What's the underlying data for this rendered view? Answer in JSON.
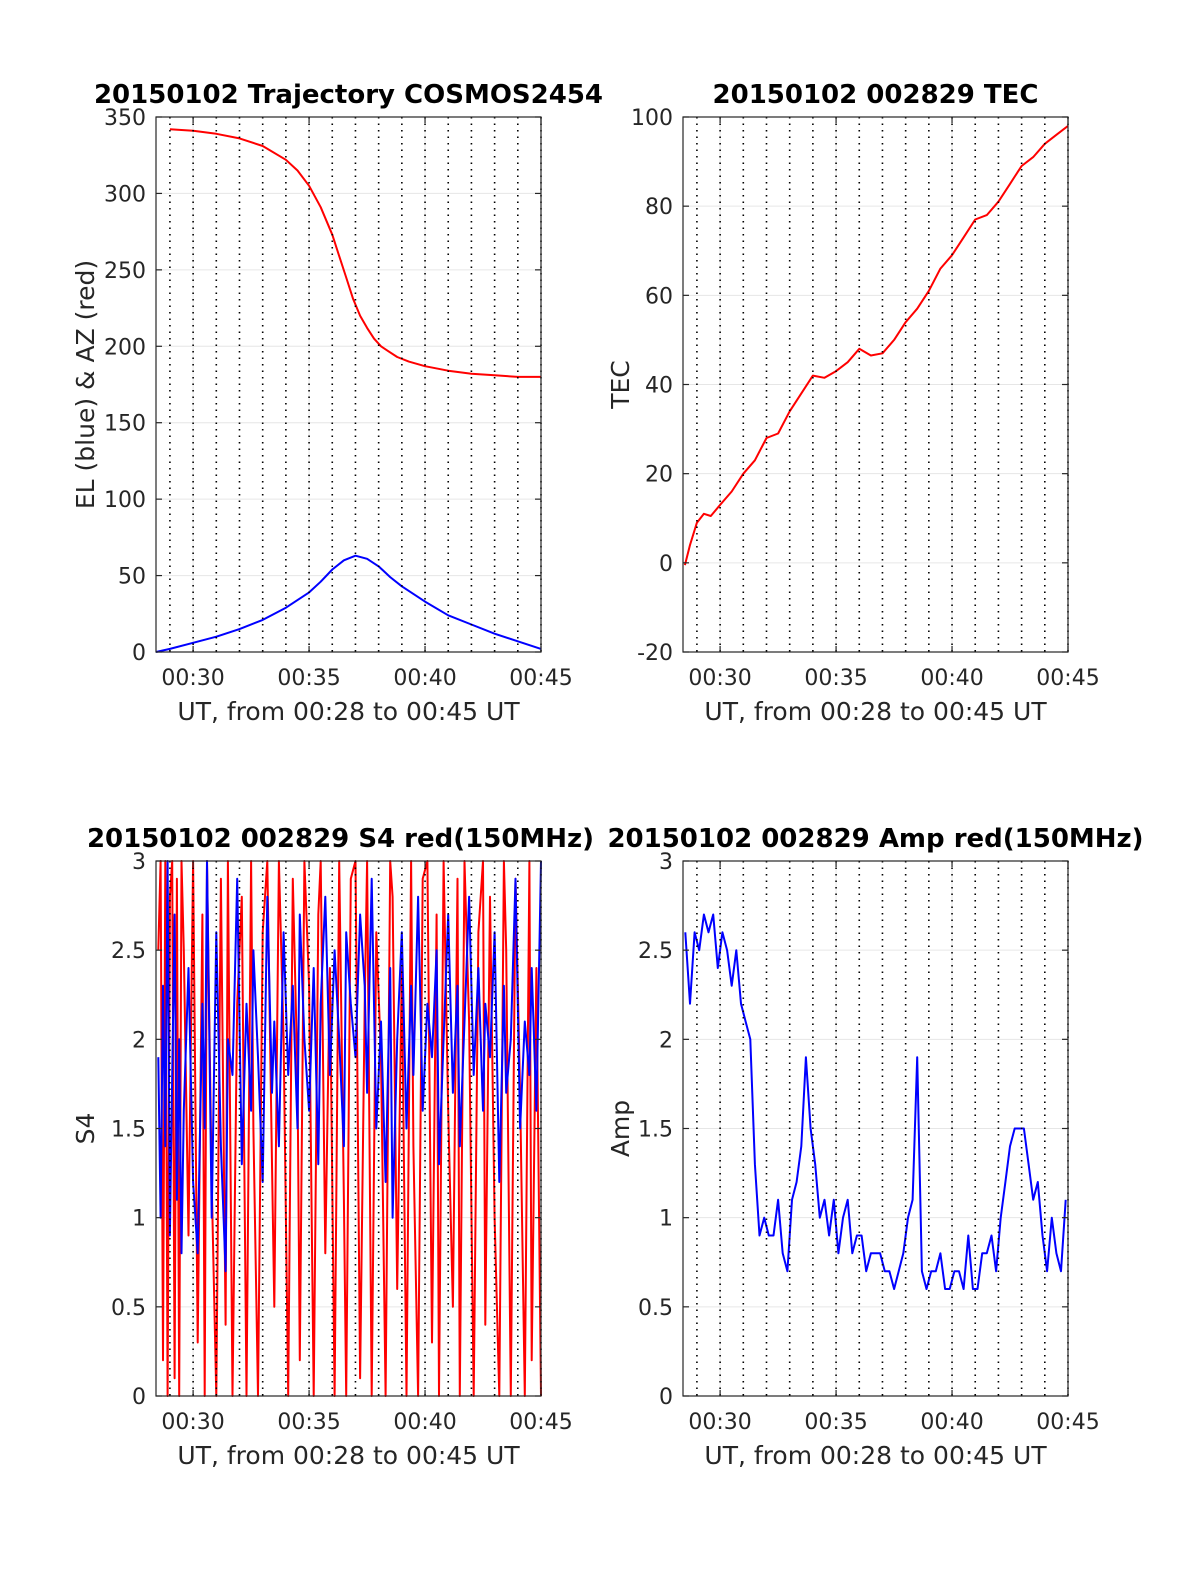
{
  "figure": {
    "background": "#ffffff",
    "grid_color": "#e6e6e6",
    "axis_color": "#262626"
  },
  "chart_data": [
    {
      "id": "trajectory",
      "type": "line",
      "title": "20150102 Trajectory COSMOS2454",
      "xlabel": "UT, from 00:28 to 00:45 UT",
      "ylabel": "EL (blue) & AZ (red)",
      "xlim": [
        28.4,
        45
      ],
      "ylim": [
        0,
        350
      ],
      "xticks": [
        30,
        35,
        40,
        45
      ],
      "xtick_labels": [
        "00:30",
        "00:35",
        "00:40",
        "00:45"
      ],
      "yticks": [
        0,
        50,
        100,
        150,
        200,
        250,
        300,
        350
      ],
      "ytick_labels": [
        "0",
        "50",
        "100",
        "150",
        "200",
        "250",
        "300",
        "350"
      ],
      "minute_lines": [
        29,
        30,
        31,
        32,
        33,
        34,
        35,
        36,
        37,
        38,
        39,
        40,
        41,
        42,
        43,
        44,
        45
      ],
      "grid": true,
      "series": [
        {
          "color": "#ff0000",
          "x": [
            29,
            30,
            31,
            32,
            33,
            34,
            34.5,
            35,
            35.5,
            36,
            36.3,
            36.6,
            36.9,
            37.2,
            37.5,
            37.8,
            38.1,
            38.4,
            38.8,
            39.3,
            40,
            41,
            42,
            43,
            44,
            45
          ],
          "y": [
            342,
            341,
            339,
            336,
            331,
            322,
            315,
            305,
            291,
            273,
            259,
            245,
            231,
            220,
            212,
            205,
            200,
            197,
            193,
            190,
            187,
            184,
            182,
            181,
            180,
            180
          ]
        },
        {
          "color": "#0000ff",
          "x": [
            28.4,
            29,
            30,
            31,
            32,
            33,
            34,
            35,
            35.5,
            36,
            36.5,
            37,
            37.5,
            38,
            38.5,
            39,
            40,
            41,
            42,
            43,
            44,
            45
          ],
          "y": [
            0,
            2,
            6,
            10,
            15,
            21,
            29,
            39,
            46,
            54,
            60,
            63,
            61,
            56,
            49,
            43,
            33,
            24,
            18,
            12,
            7,
            2
          ]
        }
      ]
    },
    {
      "id": "tec",
      "type": "line",
      "title": "20150102 002829 TEC",
      "xlabel": "UT, from 00:28 to 00:45 UT",
      "ylabel": "TEC",
      "xlim": [
        28.4,
        45
      ],
      "ylim": [
        -20,
        100
      ],
      "xticks": [
        30,
        35,
        40,
        45
      ],
      "xtick_labels": [
        "00:30",
        "00:35",
        "00:40",
        "00:45"
      ],
      "yticks": [
        -20,
        0,
        20,
        40,
        60,
        80,
        100
      ],
      "ytick_labels": [
        "-20",
        "0",
        "20",
        "40",
        "60",
        "80",
        "100"
      ],
      "minute_lines": [
        29,
        30,
        31,
        32,
        33,
        34,
        35,
        36,
        37,
        38,
        39,
        40,
        41,
        42,
        43,
        44,
        45
      ],
      "grid": true,
      "series": [
        {
          "color": "#ff0000",
          "x": [
            28.48,
            28.7,
            29.0,
            29.3,
            29.6,
            30.0,
            30.5,
            31.0,
            31.5,
            32.0,
            32.5,
            33.0,
            33.5,
            34.0,
            34.5,
            35.0,
            35.5,
            36.0,
            36.5,
            37.0,
            37.5,
            38.0,
            38.5,
            39.0,
            39.5,
            40.0,
            40.5,
            41.0,
            41.5,
            42.0,
            42.5,
            43.0,
            43.5,
            44.0,
            44.5,
            45.0
          ],
          "y": [
            -0.5,
            4,
            9,
            11,
            10.5,
            13,
            16,
            20,
            23,
            28,
            29,
            34,
            38,
            42,
            41.5,
            43,
            45,
            48,
            46.5,
            47,
            50,
            54,
            57,
            61,
            66,
            69,
            73,
            77,
            78,
            81,
            85,
            89,
            91,
            94,
            96,
            98
          ]
        }
      ]
    },
    {
      "id": "s4",
      "type": "line",
      "title": "20150102 002829 S4 red(150MHz)",
      "xlabel": "UT, from 00:28 to 00:45 UT",
      "ylabel": "S4",
      "xlim": [
        28.4,
        45
      ],
      "ylim": [
        0,
        3
      ],
      "xticks": [
        30,
        35,
        40,
        45
      ],
      "xtick_labels": [
        "00:30",
        "00:35",
        "00:40",
        "00:45"
      ],
      "yticks": [
        0,
        0.5,
        1,
        1.5,
        2,
        2.5,
        3
      ],
      "ytick_labels": [
        "0",
        "0.5",
        "1",
        "1.5",
        "2",
        "2.5",
        "3"
      ],
      "minute_lines": [
        29,
        30,
        31,
        32,
        33,
        34,
        35,
        36,
        37,
        38,
        39,
        40,
        41,
        42,
        43,
        44,
        45
      ],
      "grid": true,
      "series": [
        {
          "color": "#ff0000",
          "x": [
            28.5,
            28.6,
            28.7,
            28.8,
            28.9,
            29.0,
            29.1,
            29.2,
            29.3,
            29.4,
            29.5,
            29.6,
            29.8,
            30.0,
            30.2,
            30.4,
            30.5,
            30.6,
            30.8,
            31.0,
            31.2,
            31.4,
            31.5,
            31.7,
            31.9,
            32.1,
            32.3,
            32.5,
            32.6,
            32.8,
            33.0,
            33.2,
            33.4,
            33.5,
            33.7,
            33.9,
            34.1,
            34.3,
            34.5,
            34.6,
            34.8,
            35.0,
            35.2,
            35.4,
            35.5,
            35.7,
            35.9,
            36.1,
            36.3,
            36.5,
            36.6,
            36.8,
            37.0,
            37.2,
            37.4,
            37.5,
            37.7,
            37.9,
            38.1,
            38.3,
            38.5,
            38.6,
            38.8,
            39.0,
            39.2,
            39.4,
            39.5,
            39.7,
            39.9,
            40.1,
            40.3,
            40.5,
            40.6,
            40.8,
            41.0,
            41.2,
            41.4,
            41.5,
            41.7,
            41.9,
            42.1,
            42.3,
            42.5,
            42.6,
            42.8,
            43.0,
            43.2,
            43.4,
            43.5,
            43.7,
            43.9,
            44.1,
            44.3,
            44.5,
            44.6,
            44.8,
            45.0
          ],
          "y": [
            2.5,
            3,
            0.2,
            3,
            0,
            2.8,
            3,
            0.1,
            2.9,
            0,
            3,
            2.5,
            0.9,
            3,
            0.3,
            2.7,
            0,
            3,
            1.2,
            0,
            2.9,
            0.4,
            3,
            0,
            2.2,
            2.8,
            0,
            3,
            1.5,
            0,
            2.6,
            3,
            1.3,
            0.5,
            3,
            2.0,
            0,
            2.9,
            1.8,
            0.2,
            3,
            2.3,
            0,
            2.7,
            3,
            0.8,
            2.4,
            0,
            3,
            1.1,
            0,
            2.9,
            3,
            0.1,
            2.2,
            3,
            0,
            2.6,
            1.9,
            0,
            3,
            2.8,
            0.6,
            2.4,
            0,
            3,
            1.4,
            0,
            2.9,
            3,
            0.3,
            2.7,
            0,
            3,
            1.6,
            0.5,
            2.9,
            0,
            3,
            2.1,
            0,
            2.6,
            3,
            0.4,
            2.8,
            1.0,
            0,
            3,
            2.5,
            0,
            2.9,
            1.7,
            0,
            3,
            0.2,
            2.4,
            0
          ]
        },
        {
          "color": "#0000ff",
          "x": [
            28.5,
            28.6,
            28.7,
            28.8,
            28.9,
            29.0,
            29.1,
            29.2,
            29.3,
            29.4,
            29.5,
            29.6,
            29.8,
            30.0,
            30.2,
            30.4,
            30.5,
            30.6,
            30.8,
            31.0,
            31.2,
            31.4,
            31.5,
            31.7,
            31.9,
            32.1,
            32.3,
            32.5,
            32.6,
            32.8,
            33.0,
            33.2,
            33.4,
            33.5,
            33.7,
            33.9,
            34.1,
            34.3,
            34.5,
            34.6,
            34.8,
            35.0,
            35.2,
            35.4,
            35.5,
            35.7,
            35.9,
            36.1,
            36.3,
            36.5,
            36.6,
            36.8,
            37.0,
            37.2,
            37.4,
            37.5,
            37.7,
            37.9,
            38.1,
            38.3,
            38.5,
            38.6,
            38.8,
            39.0,
            39.2,
            39.4,
            39.5,
            39.7,
            39.9,
            40.1,
            40.3,
            40.5,
            40.6,
            40.8,
            41.0,
            41.2,
            41.4,
            41.5,
            41.7,
            41.9,
            42.1,
            42.3,
            42.5,
            42.6,
            42.8,
            43.0,
            43.2,
            43.4,
            43.5,
            43.7,
            43.9,
            44.1,
            44.3,
            44.5,
            44.6,
            44.8,
            45.0
          ],
          "y": [
            1.9,
            1.0,
            2.3,
            1.4,
            3.0,
            0.9,
            1.8,
            2.7,
            1.1,
            2.0,
            0.8,
            1.6,
            2.4,
            1.2,
            0.8,
            2.2,
            1.5,
            3.0,
            1.0,
            2.6,
            1.4,
            0.7,
            2.0,
            1.8,
            2.9,
            1.3,
            2.2,
            1.6,
            2.5,
            1.9,
            1.2,
            2.8,
            1.7,
            2.1,
            1.4,
            2.6,
            1.8,
            2.3,
            1.5,
            2.7,
            2.0,
            1.6,
            2.4,
            1.3,
            2.2,
            2.8,
            1.8,
            2.5,
            2.0,
            1.4,
            2.6,
            2.2,
            1.9,
            2.7,
            2.3,
            1.7,
            2.9,
            1.5,
            2.1,
            1.2,
            2.4,
            1.0,
            2.0,
            2.6,
            1.5,
            2.3,
            1.8,
            2.8,
            1.6,
            2.2,
            1.9,
            2.5,
            1.3,
            2.0,
            2.7,
            1.7,
            2.3,
            1.4,
            2.1,
            2.8,
            1.8,
            2.4,
            1.6,
            2.2,
            1.9,
            2.6,
            1.2,
            2.3,
            1.7,
            2.0,
            2.9,
            1.5,
            2.1,
            1.8,
            2.4,
            1.6,
            3.0
          ]
        }
      ]
    },
    {
      "id": "amp",
      "type": "line",
      "title": "20150102 002829 Amp red(150MHz)",
      "xlabel": "UT, from 00:28 to 00:45 UT",
      "ylabel": "Amp",
      "xlim": [
        28.4,
        45
      ],
      "ylim": [
        0,
        3
      ],
      "xticks": [
        30,
        35,
        40,
        45
      ],
      "xtick_labels": [
        "00:30",
        "00:35",
        "00:40",
        "00:45"
      ],
      "yticks": [
        0,
        0.5,
        1,
        1.5,
        2,
        2.5,
        3
      ],
      "ytick_labels": [
        "0",
        "0.5",
        "1",
        "1.5",
        "2",
        "2.5",
        "3"
      ],
      "minute_lines": [
        29,
        30,
        31,
        32,
        33,
        34,
        35,
        36,
        37,
        38,
        39,
        40,
        41,
        42,
        43,
        44,
        45
      ],
      "grid": true,
      "series": [
        {
          "color": "#0000ff",
          "x": [
            28.5,
            28.7,
            28.9,
            29.1,
            29.3,
            29.5,
            29.7,
            29.9,
            30.1,
            30.3,
            30.5,
            30.7,
            30.9,
            31.1,
            31.3,
            31.5,
            31.7,
            31.9,
            32.1,
            32.3,
            32.5,
            32.7,
            32.9,
            33.1,
            33.3,
            33.5,
            33.7,
            33.9,
            34.1,
            34.3,
            34.5,
            34.7,
            34.9,
            35.1,
            35.3,
            35.5,
            35.7,
            35.9,
            36.1,
            36.3,
            36.5,
            36.7,
            36.9,
            37.1,
            37.3,
            37.5,
            37.7,
            37.9,
            38.1,
            38.3,
            38.5,
            38.7,
            38.9,
            39.1,
            39.3,
            39.5,
            39.7,
            39.9,
            40.1,
            40.3,
            40.5,
            40.7,
            40.9,
            41.1,
            41.3,
            41.5,
            41.7,
            41.9,
            42.1,
            42.3,
            42.5,
            42.7,
            42.9,
            43.1,
            43.3,
            43.5,
            43.7,
            43.9,
            44.1,
            44.3,
            44.5,
            44.7,
            44.9
          ],
          "y": [
            2.6,
            2.2,
            2.6,
            2.5,
            2.7,
            2.6,
            2.7,
            2.4,
            2.6,
            2.5,
            2.3,
            2.5,
            2.2,
            2.1,
            2.0,
            1.3,
            0.9,
            1.0,
            0.9,
            0.9,
            1.1,
            0.8,
            0.7,
            1.1,
            1.2,
            1.4,
            1.9,
            1.5,
            1.3,
            1.0,
            1.1,
            0.9,
            1.1,
            0.8,
            1.0,
            1.1,
            0.8,
            0.9,
            0.9,
            0.7,
            0.8,
            0.8,
            0.8,
            0.7,
            0.7,
            0.6,
            0.7,
            0.8,
            1.0,
            1.1,
            1.9,
            0.7,
            0.6,
            0.7,
            0.7,
            0.8,
            0.6,
            0.6,
            0.7,
            0.7,
            0.6,
            0.9,
            0.6,
            0.6,
            0.8,
            0.8,
            0.9,
            0.7,
            1.0,
            1.2,
            1.4,
            1.5,
            1.5,
            1.5,
            1.3,
            1.1,
            1.2,
            0.9,
            0.7,
            1.0,
            0.8,
            0.7,
            1.1
          ]
        }
      ]
    }
  ]
}
